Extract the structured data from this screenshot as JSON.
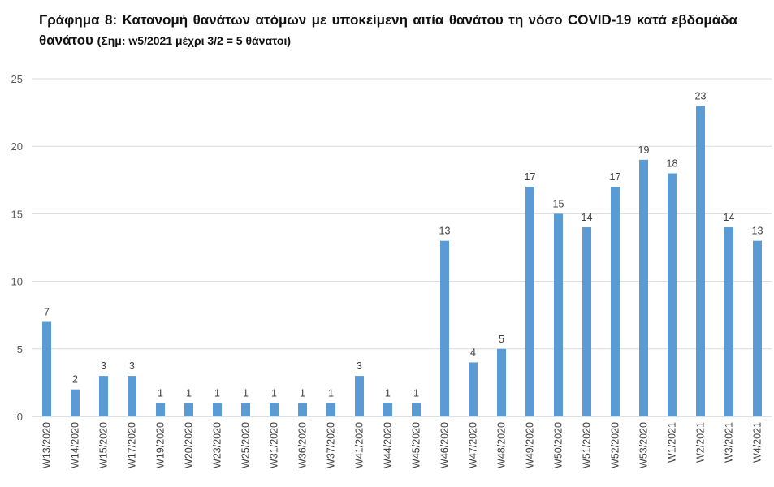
{
  "title": {
    "main": "Γράφημα 8: Κατανομή θανάτων ατόμων με υποκείμενη αιτία θανάτου τη νόσο COVID-19 κατά εβδομάδα θανάτου",
    "note": "(Σημ: w5/2021 μέχρι 3/2 = 5 θάνατοι)"
  },
  "chart_data": {
    "type": "bar",
    "title": "Γράφημα 8: Κατανομή θανάτων ατόμων με υποκείμενη αιτία θανάτου τη νόσο COVID-19 κατά εβδομάδα θανάτου (Σημ: w5/2021 μέχρι 3/2 = 5 θάνατοι)",
    "categories": [
      "W13/2020",
      "W14/2020",
      "W15/2020",
      "W17/2020",
      "W19/2020",
      "W20/2020",
      "W23/2020",
      "W25/2020",
      "W31/2020",
      "W36/2020",
      "W37/2020",
      "W41/2020",
      "W44/2020",
      "W45/2020",
      "W46/2020",
      "W47/2020",
      "W48/2020",
      "W49/2020",
      "W50/2020",
      "W51/2020",
      "W52/2020",
      "W53/2020",
      "W1/2021",
      "W2/2021",
      "W3/2021",
      "W4/2021"
    ],
    "values": [
      7,
      2,
      3,
      3,
      1,
      1,
      1,
      1,
      1,
      1,
      1,
      3,
      1,
      1,
      13,
      4,
      5,
      17,
      15,
      14,
      17,
      19,
      18,
      23,
      14,
      13
    ],
    "yticks": [
      0,
      5,
      10,
      15,
      20,
      25
    ],
    "ylim": [
      0,
      25
    ],
    "xlabel": "",
    "ylabel": "",
    "grid": true,
    "legend": "none",
    "bar_color": "#5b9bd5",
    "grid_color": "#d9d9d9",
    "data_labels": true
  }
}
